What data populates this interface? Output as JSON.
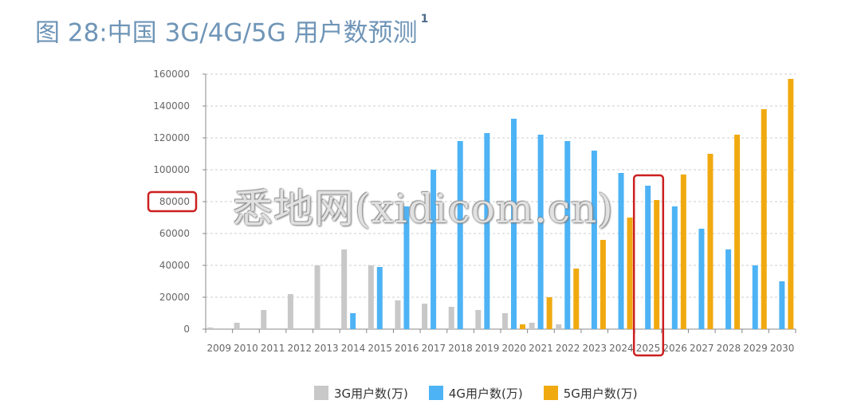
{
  "title": {
    "text": "图 28:中国 3G/4G/5G 用户数预测",
    "footnote": "1"
  },
  "watermark": "悉地网(xidicom.cn)",
  "colors": {
    "3g": "#c8c8c8",
    "4g": "#4db3f5",
    "5g": "#f0aa10",
    "highlight": "#cc1f1f",
    "axis": "#888888",
    "grid": "#cccccc",
    "tick_text": "#666666"
  },
  "chart_data": {
    "type": "bar",
    "title": "",
    "xlabel": "",
    "ylabel": "",
    "ylim": [
      0,
      160000
    ],
    "yticks": [
      0,
      20000,
      40000,
      60000,
      80000,
      100000,
      120000,
      140000,
      160000
    ],
    "grid": "horizontal dashed",
    "legend_position": "bottom-center",
    "categories": [
      "2009",
      "2010",
      "2011",
      "2012",
      "2013",
      "2014",
      "2015",
      "2016",
      "2017",
      "2018",
      "2019",
      "2020",
      "2021",
      "2022",
      "2023",
      "2024",
      "2025",
      "2026",
      "2027",
      "2028",
      "2029",
      "2030"
    ],
    "series": [
      {
        "name": "3G用户数(万)",
        "color": "#c8c8c8",
        "values": [
          1000,
          4000,
          12000,
          22000,
          40000,
          50000,
          40000,
          18000,
          16000,
          14000,
          12000,
          10000,
          4000,
          3000,
          0,
          0,
          0,
          0,
          0,
          0,
          0,
          0
        ]
      },
      {
        "name": "4G用户数(万)",
        "color": "#4db3f5",
        "values": [
          0,
          0,
          0,
          0,
          0,
          10000,
          39000,
          77000,
          100000,
          118000,
          123000,
          132000,
          122000,
          118000,
          112000,
          98000,
          90000,
          77000,
          63000,
          50000,
          40000,
          30000
        ]
      },
      {
        "name": "5G用户数(万)",
        "color": "#f0aa10",
        "values": [
          0,
          0,
          0,
          0,
          0,
          0,
          0,
          0,
          0,
          0,
          0,
          3000,
          20000,
          38000,
          56000,
          70000,
          81000,
          97000,
          110000,
          122000,
          138000,
          157000
        ]
      }
    ],
    "highlights": {
      "ytick": 80000,
      "category": "2025"
    }
  }
}
